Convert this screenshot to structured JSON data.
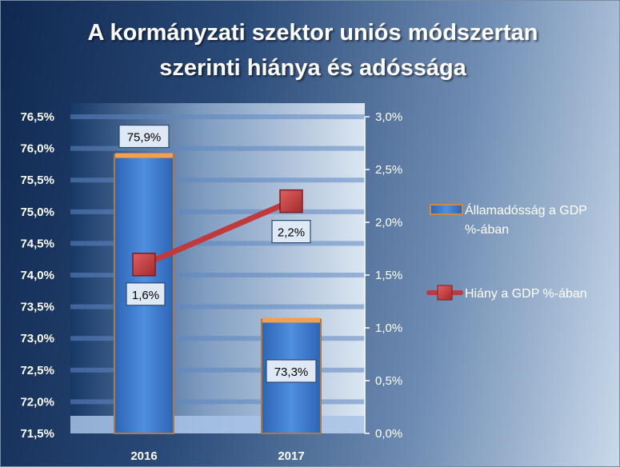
{
  "title_lines": [
    "A kormányzati szektor uniós módszertan",
    "szerinti hiánya és adóssága"
  ],
  "chart_data": {
    "type": "bar",
    "categories": [
      "2016",
      "2017"
    ],
    "series": [
      {
        "name": "Államadósság a GDP %-ában",
        "type": "bar",
        "axis": "left",
        "values": [
          75.9,
          73.3
        ],
        "labels": [
          "75,9%",
          "73,3%"
        ],
        "color": "#3f7fd0"
      },
      {
        "name": "Hiány a GDP %-ában",
        "type": "line",
        "axis": "right",
        "values": [
          1.6,
          2.2
        ],
        "labels": [
          "1,6%",
          "2,2%"
        ],
        "color": "#c0393b"
      }
    ],
    "y_left": {
      "ylim": [
        71.5,
        76.5
      ],
      "ticks": [
        71.5,
        72.0,
        72.5,
        73.0,
        73.5,
        74.0,
        74.5,
        75.0,
        75.5,
        76.0,
        76.5
      ],
      "tick_labels": [
        "71,5%",
        "72,0%",
        "72,5%",
        "73,0%",
        "73,5%",
        "74,0%",
        "74,5%",
        "75,0%",
        "75,5%",
        "76,0%",
        "76,5%"
      ]
    },
    "y_right": {
      "ylim": [
        0,
        3
      ],
      "ticks": [
        0,
        0.5,
        1.0,
        1.5,
        2.0,
        2.5,
        3.0
      ],
      "tick_labels": [
        "0,0%",
        "0,5%",
        "1,0%",
        "1,5%",
        "2,0%",
        "2,5%",
        "3,0%"
      ]
    },
    "grid": true,
    "legend": "right"
  }
}
